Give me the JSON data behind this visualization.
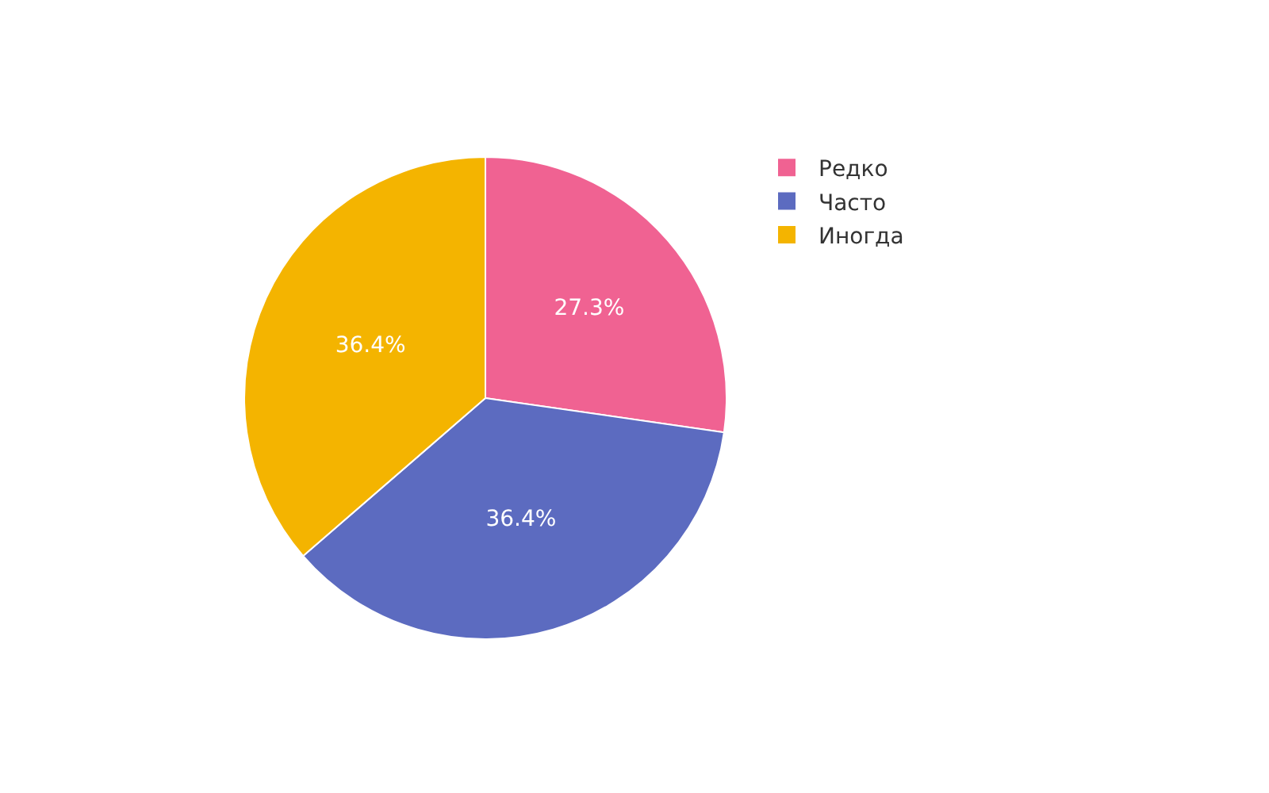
{
  "chart_data": {
    "type": "pie",
    "categories": [
      "Редко",
      "Часто",
      "Иногда"
    ],
    "values": [
      27.3,
      36.4,
      36.4
    ],
    "colors": [
      "#f06292",
      "#5c6bc0",
      "#f4b400"
    ],
    "value_labels": [
      "27.3%",
      "36.4%",
      "36.4%"
    ],
    "legend": "top right"
  }
}
